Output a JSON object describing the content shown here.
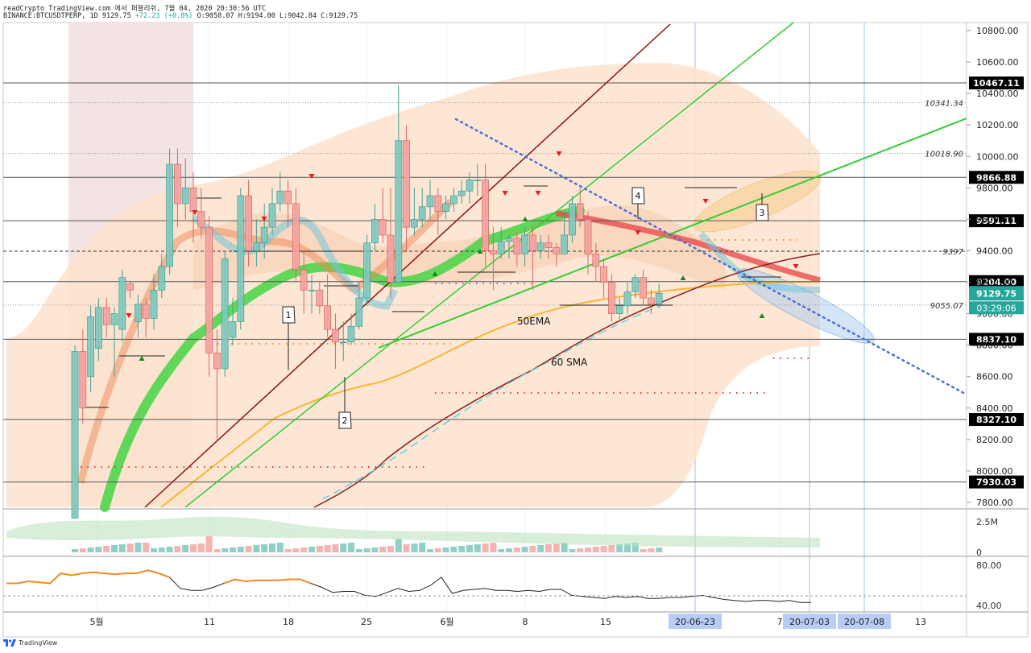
{
  "header": {
    "line1": "readCrypto TradingView.com 에서 퍼블리쉬, 7월 04, 2020 20:30:56 UTC",
    "symbol": "BINANCE:BTCUSDTPERP, 1D",
    "last": "9129.75",
    "change": "+72.23 (+0.8%)",
    "open": "O:9058.07",
    "high": "H:9194.00",
    "low": "L:9042.84",
    "close": "C:9129.75"
  },
  "footer": {
    "brand": "TradingView"
  },
  "colors": {
    "up": "#26a69a",
    "down": "#ef5350",
    "ema_fast": "#44d544",
    "trend_red": "#e84c4c",
    "sma50": "#f7b733",
    "sma60": "#8b1a1a",
    "trendline_dark": "#8b1010",
    "trendline_green": "#33cc33",
    "dotted_blue": "#4a6fd6",
    "cloud": "#fde3cc",
    "price_tag": "#26a69a",
    "date_tag": "#b7cdf5"
  },
  "chart_data": {
    "type": "candlestick",
    "y_axis": {
      "ticks": [
        "10800.00",
        "10600.00",
        "10400.00",
        "10200.00",
        "10000.00",
        "9800.00",
        "9600.00",
        "9400.00",
        "9200.00",
        "9000.00",
        "8800.00",
        "8600.00",
        "8400.00",
        "8200.00",
        "8000.00",
        "7800.00"
      ],
      "range": [
        7790,
        10840
      ]
    },
    "x_axis": {
      "ticks": [
        "5월",
        "11",
        "18",
        "25",
        "6월",
        "8",
        "15",
        "20-06-23",
        "7",
        "20-07-03",
        "20-07-08",
        "13"
      ],
      "highlighted": [
        "20-06-23",
        "20-07-03",
        "20-07-08"
      ]
    },
    "horizontal_levels": [
      {
        "label": "10467.11",
        "value": 10467.11,
        "style": "solid-tag"
      },
      {
        "label": "10341.34",
        "value": 10341.34,
        "style": "dotted-note"
      },
      {
        "label": "10018.90",
        "value": 10018.9,
        "style": "dotted-note"
      },
      {
        "label": "9866.88",
        "value": 9866.88,
        "style": "solid-tag"
      },
      {
        "label": "9591.11",
        "value": 9591.11,
        "style": "solid-tag"
      },
      {
        "label": "9397",
        "value": 9397,
        "style": "dashed-note"
      },
      {
        "label": "9204.00",
        "value": 9204.0,
        "style": "solid-tag"
      },
      {
        "label": "9055.07",
        "value": 9055.07,
        "style": "dotted-note"
      },
      {
        "label": "8837.10",
        "value": 8837.1,
        "style": "solid-tag"
      },
      {
        "label": "8327.10",
        "value": 8327.1,
        "style": "solid-tag"
      },
      {
        "label": "7930.03",
        "value": 7930.03,
        "style": "solid-tag"
      }
    ],
    "current_price": {
      "label": "9129.75",
      "value": 9129.75,
      "countdown": "03:29:06"
    },
    "annotations": [
      {
        "text": "50EMA"
      },
      {
        "text": "60 SMA"
      },
      {
        "text": "1"
      },
      {
        "text": "2"
      },
      {
        "text": "3"
      },
      {
        "text": "4"
      }
    ],
    "candles": [
      [
        7700,
        8760,
        7700,
        8800
      ],
      [
        8760,
        8400,
        8300,
        8900
      ],
      [
        8600,
        8980,
        8500,
        9050
      ],
      [
        8780,
        9040,
        8700,
        9100
      ],
      [
        9040,
        8930,
        8850,
        9100
      ],
      [
        8930,
        9000,
        8600,
        9040
      ],
      [
        8900,
        9230,
        8820,
        9280
      ],
      [
        9190,
        9150,
        9100,
        9200
      ],
      [
        8950,
        9060,
        8850,
        9120
      ],
      [
        9060,
        8970,
        8850,
        9100
      ],
      [
        8970,
        9150,
        8900,
        9250
      ],
      [
        9150,
        9300,
        9100,
        9380
      ],
      [
        9300,
        9950,
        9250,
        10050
      ],
      [
        9950,
        9700,
        9550,
        10050
      ],
      [
        9700,
        9800,
        9600,
        9990
      ],
      [
        9800,
        9650,
        9450,
        9900
      ],
      [
        9650,
        9550,
        9480,
        9800
      ],
      [
        9550,
        8750,
        8600,
        9620
      ],
      [
        8750,
        8650,
        8200,
        8900
      ],
      [
        8650,
        9350,
        8600,
        9400
      ],
      [
        8850,
        8950,
        8800,
        9100
      ],
      [
        8950,
        9750,
        8900,
        9800
      ],
      [
        9750,
        9400,
        9300,
        9850
      ],
      [
        9400,
        9450,
        9300,
        9600
      ],
      [
        9450,
        9550,
        9350,
        9700
      ],
      [
        9550,
        9700,
        9500,
        9800
      ],
      [
        9700,
        9780,
        9650,
        9900
      ],
      [
        9780,
        9700,
        9550,
        9850
      ],
      [
        9700,
        9280,
        9200,
        9800
      ],
      [
        9280,
        9150,
        9000,
        9400
      ],
      [
        9150,
        9150,
        9000,
        9250
      ],
      [
        9150,
        9050,
        9000,
        9200
      ],
      [
        9050,
        8900,
        8850,
        9250
      ],
      [
        8900,
        8820,
        8650,
        9000
      ],
      [
        8820,
        8820,
        8700,
        8950
      ],
      [
        8820,
        8920,
        8800,
        9000
      ],
      [
        8920,
        9100,
        8900,
        9200
      ],
      [
        9100,
        9450,
        9050,
        9500
      ],
      [
        9450,
        9600,
        9400,
        9700
      ],
      [
        9600,
        9500,
        9450,
        9800
      ],
      [
        9500,
        9200,
        9100,
        9800
      ],
      [
        9200,
        10100,
        9200,
        10450
      ],
      [
        10100,
        9550,
        9400,
        10200
      ],
      [
        9550,
        9600,
        9500,
        9800
      ],
      [
        9600,
        9680,
        9550,
        9800
      ],
      [
        9680,
        9750,
        9600,
        9850
      ],
      [
        9750,
        9650,
        9500,
        9800
      ],
      [
        9650,
        9700,
        9600,
        9750
      ],
      [
        9700,
        9750,
        9650,
        9800
      ],
      [
        9750,
        9780,
        9700,
        9850
      ],
      [
        9780,
        9850,
        9700,
        9900
      ],
      [
        9850,
        9850,
        9750,
        9950
      ],
      [
        9850,
        9400,
        9300,
        9950
      ],
      [
        9400,
        9380,
        9150,
        9550
      ],
      [
        9380,
        9460,
        9350,
        9550
      ],
      [
        9460,
        9480,
        9350,
        9500
      ],
      [
        9480,
        9380,
        9300,
        9520
      ],
      [
        9380,
        9500,
        9300,
        9550
      ],
      [
        9500,
        9400,
        9150,
        9560
      ],
      [
        9400,
        9450,
        9350,
        9500
      ],
      [
        9450,
        9420,
        9350,
        9500
      ],
      [
        9420,
        9380,
        9300,
        9450
      ],
      [
        9380,
        9500,
        9400,
        9650
      ],
      [
        9500,
        9700,
        9450,
        9750
      ],
      [
        9700,
        9600,
        9550,
        9800
      ],
      [
        9600,
        9380,
        9250,
        9650
      ],
      [
        9380,
        9300,
        9200,
        9450
      ],
      [
        9300,
        9200,
        9100,
        9350
      ],
      [
        9200,
        9000,
        8950,
        9250
      ],
      [
        9000,
        9050,
        8950,
        9100
      ],
      [
        9050,
        9140,
        9000,
        9200
      ],
      [
        9140,
        9230,
        9100,
        9250
      ],
      [
        9230,
        9100,
        9050,
        9280
      ],
      [
        9100,
        9060,
        9000,
        9150
      ],
      [
        9060,
        9130,
        9040,
        9190
      ]
    ],
    "volume_panel": {
      "ticks": [
        "2.5M",
        "0"
      ]
    },
    "rsi_panel": {
      "ticks": [
        "80.00",
        "40.00"
      ],
      "values": [
        62,
        62,
        64,
        63,
        62,
        72,
        70,
        72,
        73,
        72,
        71,
        72,
        72,
        75,
        72,
        68,
        57,
        55,
        55,
        58,
        62,
        66,
        64,
        65,
        65,
        65,
        66,
        66,
        62,
        58,
        53,
        54,
        54,
        50,
        49,
        53,
        57,
        54,
        55,
        60,
        68,
        52,
        55,
        56,
        57,
        55,
        55,
        54,
        55,
        54,
        56,
        56,
        50,
        49,
        48,
        47,
        49,
        48,
        49,
        47,
        47,
        48,
        48,
        49,
        50,
        48,
        46,
        45,
        44,
        45,
        45,
        44,
        45,
        43,
        43
      ]
    }
  }
}
